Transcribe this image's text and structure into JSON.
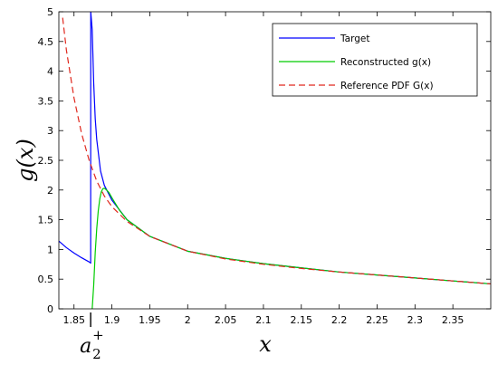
{
  "chart_data": {
    "type": "line",
    "xlabel": "x",
    "ylabel": "g(x)",
    "xlim": [
      1.83,
      2.4
    ],
    "ylim": [
      0,
      5
    ],
    "x_ticks": [
      1.85,
      1.9,
      1.95,
      2,
      2.05,
      2.1,
      2.15,
      2.2,
      2.25,
      2.3,
      2.35
    ],
    "x_tick_labels": [
      "1.85",
      "1.9",
      "1.95",
      "2",
      "2.05",
      "2.1",
      "2.15",
      "2.2",
      "2.25",
      "2.3",
      "2.35"
    ],
    "y_ticks": [
      0,
      0.5,
      1,
      1.5,
      2,
      2.5,
      3,
      3.5,
      4,
      4.5,
      5
    ],
    "y_tick_labels": [
      "0",
      "0.5",
      "1",
      "1.5",
      "2",
      "2.5",
      "3",
      "3.5",
      "4",
      "4.5",
      "5"
    ],
    "annotation": {
      "base": "a",
      "sub": "2",
      "sup": "+",
      "x": 1.872
    },
    "legend_position": "top-right",
    "grid": false,
    "series": [
      {
        "name": "Target",
        "color": "#0000ff",
        "style": "solid",
        "x": [
          1.83,
          1.84,
          1.85,
          1.86,
          1.87,
          1.872,
          1.8721,
          1.874,
          1.876,
          1.878,
          1.88,
          1.885,
          1.89,
          1.9,
          1.92,
          1.95,
          2.0,
          2.05,
          2.1,
          2.15,
          2.2,
          2.25,
          2.3,
          2.35,
          2.4
        ],
        "y": [
          1.14,
          1.03,
          0.94,
          0.86,
          0.79,
          0.77,
          5.0,
          4.7,
          3.8,
          3.2,
          2.85,
          2.32,
          2.08,
          1.83,
          1.5,
          1.22,
          0.97,
          0.85,
          0.76,
          0.69,
          0.62,
          0.57,
          0.52,
          0.47,
          0.42
        ]
      },
      {
        "name": "Reconstructed g(x)",
        "color": "#00cc00",
        "style": "solid",
        "x": [
          1.874,
          1.876,
          1.878,
          1.88,
          1.882,
          1.884,
          1.886,
          1.888,
          1.89,
          1.893,
          1.896,
          1.9,
          1.91,
          1.92,
          1.95,
          2.0,
          2.05,
          2.1,
          2.15,
          2.2,
          2.25,
          2.3,
          2.35,
          2.4
        ],
        "y": [
          0.0,
          0.4,
          0.95,
          1.35,
          1.65,
          1.85,
          1.97,
          2.02,
          2.03,
          2.0,
          1.96,
          1.87,
          1.66,
          1.5,
          1.22,
          0.97,
          0.85,
          0.76,
          0.69,
          0.62,
          0.57,
          0.52,
          0.47,
          0.42
        ]
      },
      {
        "name": "Reference PDF G(x)",
        "color": "#e0281e",
        "style": "dashed",
        "x": [
          1.835,
          1.84,
          1.85,
          1.86,
          1.87,
          1.88,
          1.89,
          1.9,
          1.92,
          1.95,
          2.0,
          2.05,
          2.1,
          2.15,
          2.2,
          2.25,
          2.3,
          2.35,
          2.4
        ],
        "y": [
          4.9,
          4.35,
          3.55,
          2.95,
          2.5,
          2.15,
          1.9,
          1.72,
          1.47,
          1.22,
          0.97,
          0.84,
          0.75,
          0.68,
          0.62,
          0.57,
          0.52,
          0.47,
          0.42
        ]
      }
    ]
  }
}
